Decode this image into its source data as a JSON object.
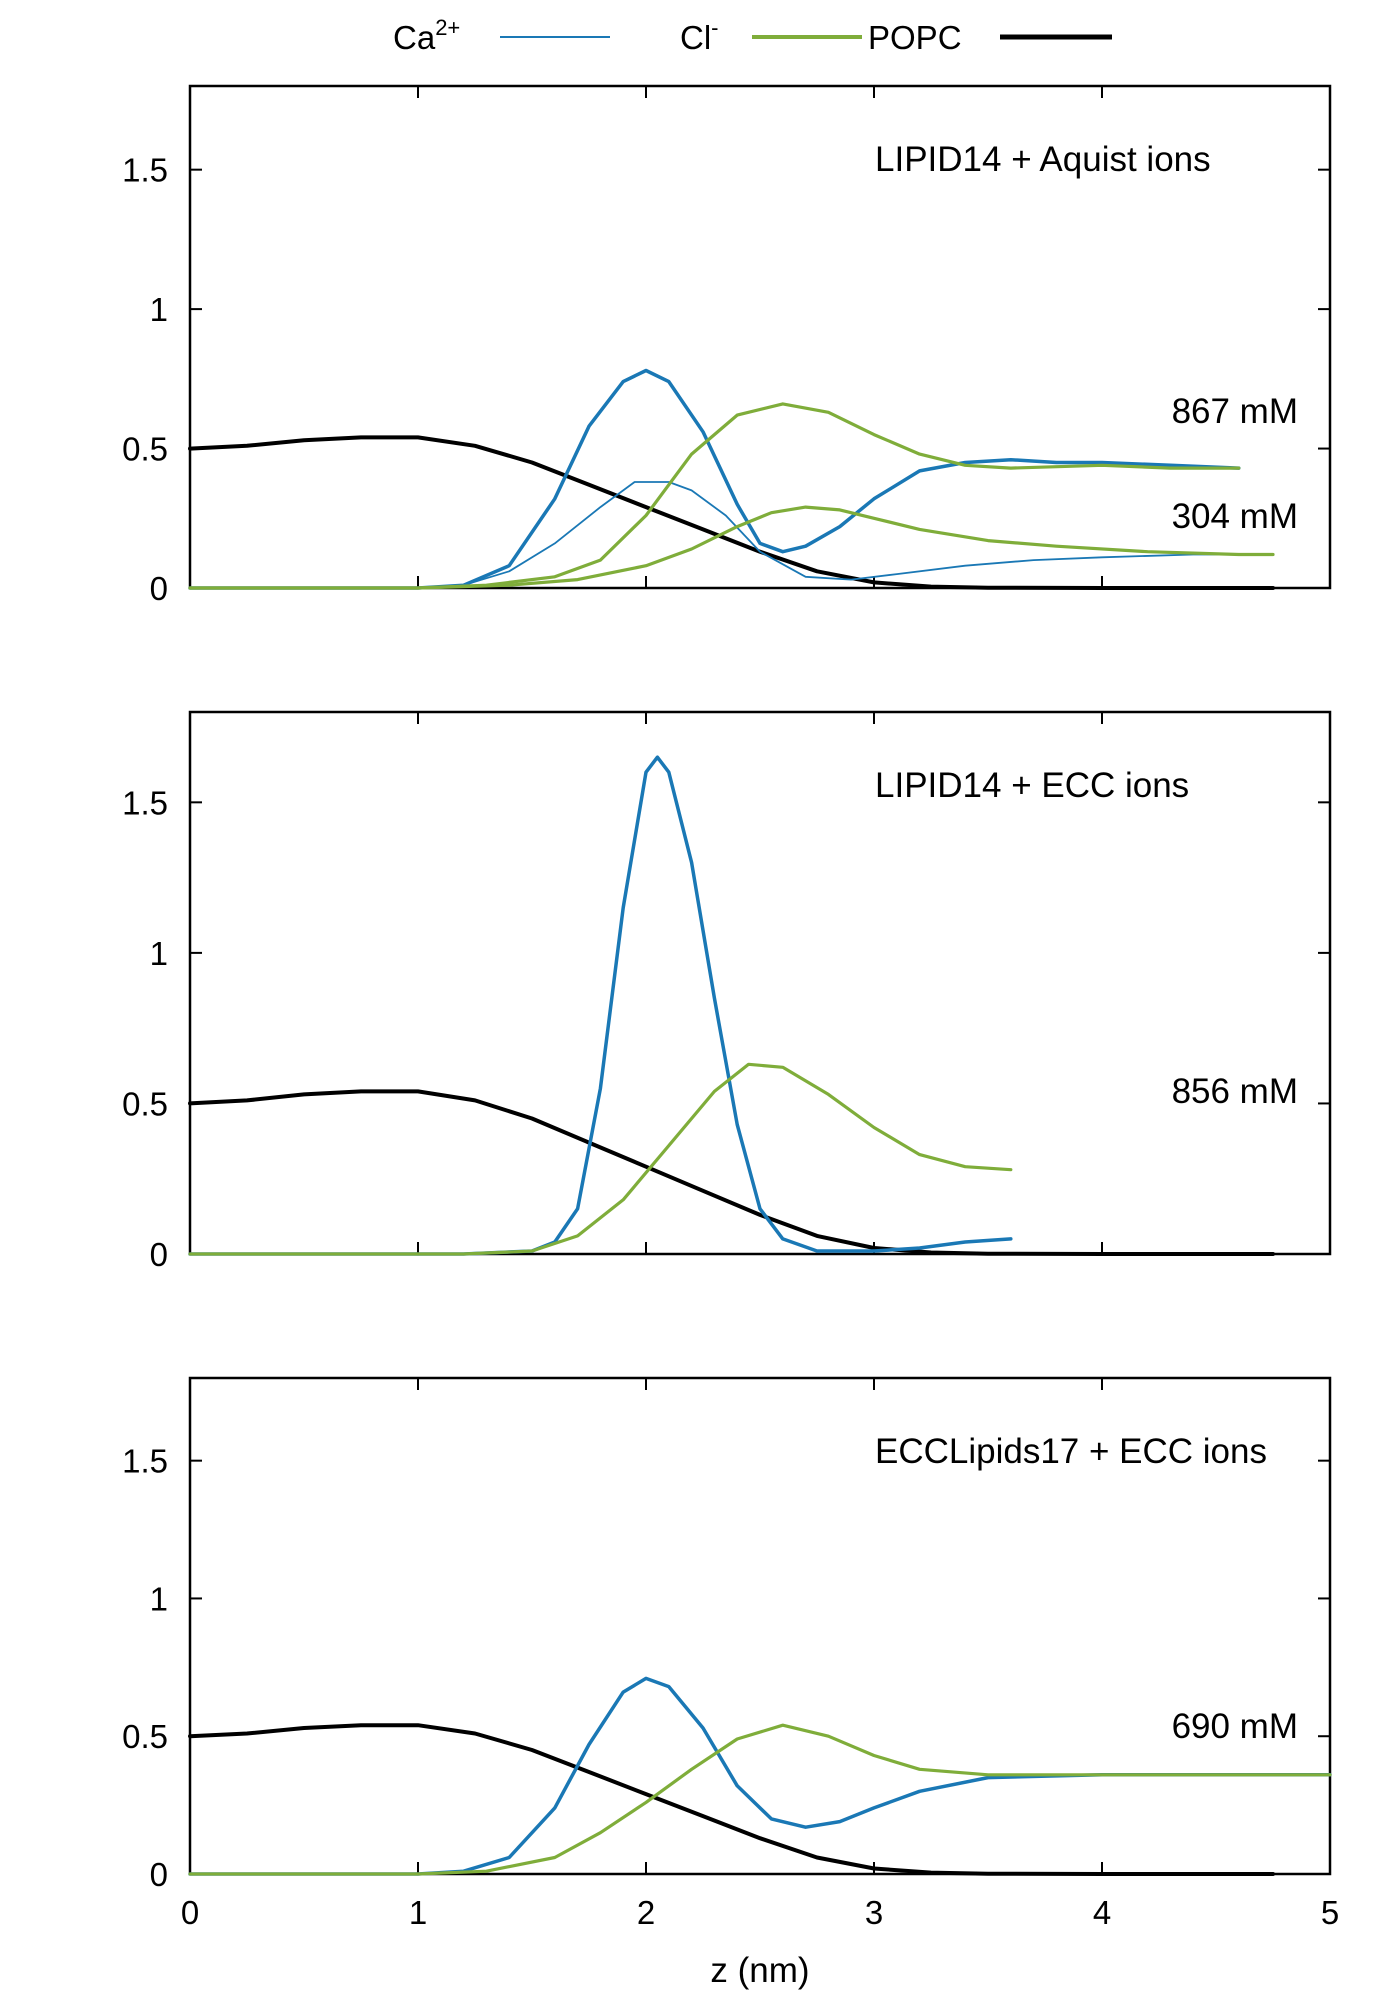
{
  "legend": {
    "items": [
      {
        "label": "Ca",
        "sup": "2+",
        "color": "#1a78b5"
      },
      {
        "label": "Cl",
        "sup": "-",
        "color": "#7fad3a"
      },
      {
        "label": "POPC",
        "sup": "",
        "color": "#000000"
      }
    ]
  },
  "colors": {
    "calcium": "#1a78b5",
    "chloride": "#7fad3a",
    "popc": "#000000"
  },
  "chart_data": [
    {
      "type": "line",
      "annotation": "LIPID14 + Aquist ions",
      "concentration_labels": [
        "867 mM",
        "304 mM"
      ],
      "xlim": [
        0,
        5
      ],
      "ylim": [
        0,
        1.8
      ],
      "xticks": [
        "0",
        "1",
        "2",
        "3",
        "4",
        "5"
      ],
      "yticks": [
        "0",
        "0.5",
        "1",
        "1.5"
      ],
      "series": [
        {
          "name": "POPC",
          "color": "#000000",
          "x": [
            0,
            0.25,
            0.5,
            0.75,
            1.0,
            1.25,
            1.5,
            1.75,
            2.0,
            2.25,
            2.5,
            2.75,
            3.0,
            3.25,
            3.5,
            4.0,
            4.5,
            4.75
          ],
          "y": [
            0.5,
            0.51,
            0.53,
            0.54,
            0.54,
            0.51,
            0.45,
            0.37,
            0.29,
            0.21,
            0.13,
            0.06,
            0.02,
            0.005,
            0.001,
            0.0,
            0.0,
            0.0
          ]
        },
        {
          "name": "Ca2+ 867 mM",
          "color": "#1a78b5",
          "x": [
            0,
            1.0,
            1.2,
            1.4,
            1.6,
            1.75,
            1.9,
            2.0,
            2.1,
            2.25,
            2.4,
            2.5,
            2.6,
            2.7,
            2.85,
            3.0,
            3.2,
            3.4,
            3.6,
            3.8,
            4.0,
            4.3,
            4.6
          ],
          "y": [
            0,
            0,
            0.01,
            0.08,
            0.32,
            0.58,
            0.74,
            0.78,
            0.74,
            0.56,
            0.3,
            0.16,
            0.13,
            0.15,
            0.22,
            0.32,
            0.42,
            0.45,
            0.46,
            0.45,
            0.45,
            0.44,
            0.43
          ]
        },
        {
          "name": "Ca2+ 304 mM",
          "color": "#1a78b5",
          "x": [
            0,
            1.0,
            1.2,
            1.4,
            1.6,
            1.8,
            1.95,
            2.1,
            2.2,
            2.35,
            2.5,
            2.7,
            2.9,
            3.1,
            3.4,
            3.7,
            4.0,
            4.4,
            4.75
          ],
          "y": [
            0,
            0,
            0.01,
            0.06,
            0.16,
            0.29,
            0.38,
            0.38,
            0.35,
            0.26,
            0.13,
            0.04,
            0.03,
            0.05,
            0.08,
            0.1,
            0.11,
            0.12,
            0.12
          ]
        },
        {
          "name": "Cl- 867 mM",
          "color": "#7fad3a",
          "x": [
            0,
            1.0,
            1.3,
            1.6,
            1.8,
            2.0,
            2.2,
            2.4,
            2.6,
            2.8,
            3.0,
            3.2,
            3.4,
            3.6,
            4.0,
            4.3,
            4.6
          ],
          "y": [
            0,
            0,
            0.01,
            0.04,
            0.1,
            0.26,
            0.48,
            0.62,
            0.66,
            0.63,
            0.55,
            0.48,
            0.44,
            0.43,
            0.44,
            0.43,
            0.43
          ]
        },
        {
          "name": "Cl- 304 mM",
          "color": "#7fad3a",
          "x": [
            0,
            1.0,
            1.4,
            1.7,
            2.0,
            2.2,
            2.4,
            2.55,
            2.7,
            2.85,
            3.0,
            3.2,
            3.5,
            3.8,
            4.2,
            4.6,
            4.75
          ],
          "y": [
            0,
            0,
            0.01,
            0.03,
            0.08,
            0.14,
            0.22,
            0.27,
            0.29,
            0.28,
            0.25,
            0.21,
            0.17,
            0.15,
            0.13,
            0.12,
            0.12
          ]
        }
      ]
    },
    {
      "type": "line",
      "annotation": "LIPID14 + ECC ions",
      "concentration_labels": [
        "856 mM"
      ],
      "xlim": [
        0,
        5
      ],
      "ylim": [
        0,
        1.8
      ],
      "xticks": [
        "0",
        "1",
        "2",
        "3",
        "4",
        "5"
      ],
      "yticks": [
        "0",
        "0.5",
        "1",
        "1.5"
      ],
      "series": [
        {
          "name": "POPC",
          "color": "#000000",
          "x": [
            0,
            0.25,
            0.5,
            0.75,
            1.0,
            1.25,
            1.5,
            1.75,
            2.0,
            2.25,
            2.5,
            2.75,
            3.0,
            3.25,
            3.5,
            4.0,
            4.5,
            4.75
          ],
          "y": [
            0.5,
            0.51,
            0.53,
            0.54,
            0.54,
            0.51,
            0.45,
            0.37,
            0.29,
            0.21,
            0.13,
            0.06,
            0.02,
            0.005,
            0.001,
            0.0,
            0.0,
            0.0
          ]
        },
        {
          "name": "Ca2+",
          "color": "#1a78b5",
          "x": [
            0,
            1.2,
            1.5,
            1.6,
            1.7,
            1.8,
            1.9,
            2.0,
            2.05,
            2.1,
            2.2,
            2.3,
            2.4,
            2.5,
            2.6,
            2.75,
            3.0,
            3.2,
            3.4,
            3.6
          ],
          "y": [
            0,
            0,
            0.01,
            0.04,
            0.15,
            0.55,
            1.15,
            1.6,
            1.65,
            1.6,
            1.3,
            0.85,
            0.43,
            0.15,
            0.05,
            0.01,
            0.01,
            0.02,
            0.04,
            0.05
          ]
        },
        {
          "name": "Cl-",
          "color": "#7fad3a",
          "x": [
            0,
            1.2,
            1.5,
            1.7,
            1.9,
            2.1,
            2.3,
            2.45,
            2.6,
            2.8,
            3.0,
            3.2,
            3.4,
            3.6
          ],
          "y": [
            0,
            0,
            0.01,
            0.06,
            0.18,
            0.36,
            0.54,
            0.63,
            0.62,
            0.53,
            0.42,
            0.33,
            0.29,
            0.28
          ]
        }
      ]
    },
    {
      "type": "line",
      "annotation": "ECCLipids17 + ECC ions",
      "concentration_labels": [
        "690 mM"
      ],
      "xlim": [
        0,
        5
      ],
      "ylim": [
        0,
        1.8
      ],
      "xticks": [
        "0",
        "1",
        "2",
        "3",
        "4",
        "5"
      ],
      "yticks": [
        "0",
        "0.5",
        "1",
        "1.5"
      ],
      "xlabel": "z (nm)",
      "series": [
        {
          "name": "POPC",
          "color": "#000000",
          "x": [
            0,
            0.25,
            0.5,
            0.75,
            1.0,
            1.25,
            1.5,
            1.75,
            2.0,
            2.25,
            2.5,
            2.75,
            3.0,
            3.25,
            3.5,
            4.0,
            4.5,
            4.75
          ],
          "y": [
            0.5,
            0.51,
            0.53,
            0.54,
            0.54,
            0.51,
            0.45,
            0.37,
            0.29,
            0.21,
            0.13,
            0.06,
            0.02,
            0.005,
            0.001,
            0.0,
            0.0,
            0.0
          ]
        },
        {
          "name": "Ca2+",
          "color": "#1a78b5",
          "x": [
            0,
            1.0,
            1.2,
            1.4,
            1.6,
            1.75,
            1.9,
            2.0,
            2.1,
            2.25,
            2.4,
            2.55,
            2.7,
            2.85,
            3.0,
            3.2,
            3.5,
            4.0,
            4.5,
            5.0
          ],
          "y": [
            0,
            0,
            0.01,
            0.06,
            0.24,
            0.47,
            0.66,
            0.71,
            0.68,
            0.53,
            0.32,
            0.2,
            0.17,
            0.19,
            0.24,
            0.3,
            0.35,
            0.36,
            0.36,
            0.36
          ]
        },
        {
          "name": "Cl-",
          "color": "#7fad3a",
          "x": [
            0,
            1.0,
            1.3,
            1.6,
            1.8,
            2.0,
            2.2,
            2.4,
            2.6,
            2.8,
            3.0,
            3.2,
            3.5,
            4.0,
            4.5,
            5.0
          ],
          "y": [
            0,
            0,
            0.01,
            0.06,
            0.15,
            0.26,
            0.38,
            0.49,
            0.54,
            0.5,
            0.43,
            0.38,
            0.36,
            0.36,
            0.36,
            0.36
          ]
        }
      ]
    }
  ]
}
